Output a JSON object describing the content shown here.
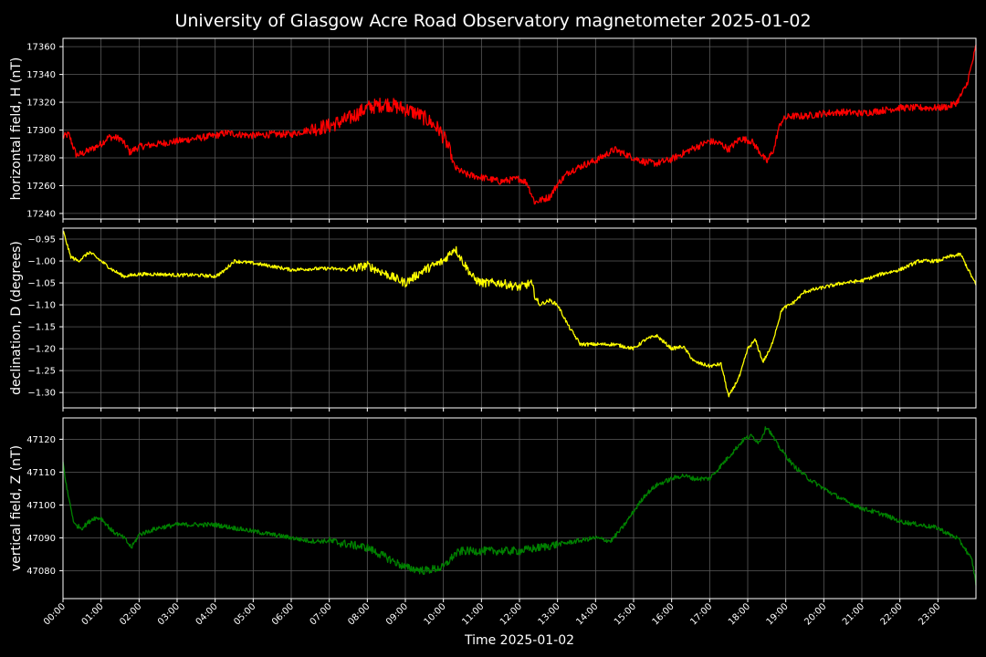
{
  "chart_data": {
    "type": "line",
    "title": "University of Glasgow Acre Road Observatory magnetometer 2025-01-02",
    "xlabel": "Time 2025-01-02",
    "x_ticks": [
      "00:00",
      "01:00",
      "02:00",
      "03:00",
      "04:00",
      "05:00",
      "06:00",
      "07:00",
      "08:00",
      "09:00",
      "10:00",
      "11:00",
      "12:00",
      "13:00",
      "14:00",
      "15:00",
      "16:00",
      "17:00",
      "18:00",
      "19:00",
      "20:00",
      "21:00",
      "22:00",
      "23:00"
    ],
    "x_range_hours": [
      0,
      24
    ],
    "grid": true,
    "panels": [
      {
        "id": "H",
        "ylabel": "horizontal field, H (nT)",
        "color": "#ff0000",
        "ylim": [
          17236,
          17366
        ],
        "yticks": [
          "17240",
          "17260",
          "17280",
          "17300",
          "17320",
          "17340",
          "17360"
        ],
        "ytick_values": [
          17240,
          17260,
          17280,
          17300,
          17320,
          17340,
          17360
        ],
        "noise": 2.5,
        "series": {
          "x_hours": [
            0,
            0.15,
            0.35,
            0.5,
            0.8,
            1.0,
            1.2,
            1.5,
            1.7,
            1.75,
            2.0,
            2.5,
            3.0,
            3.5,
            4.0,
            4.3,
            4.6,
            5.0,
            5.5,
            6.0,
            6.3,
            6.6,
            7.0,
            7.5,
            8.0,
            8.5,
            9.0,
            9.3,
            9.6,
            9.9,
            10.1,
            10.3,
            10.6,
            11.0,
            11.5,
            12.0,
            12.2,
            12.4,
            12.6,
            12.8,
            13.0,
            13.3,
            13.7,
            14.0,
            14.5,
            15.0,
            15.3,
            15.6,
            16.0,
            16.5,
            17.0,
            17.3,
            17.5,
            17.8,
            18.1,
            18.3,
            18.5,
            18.7,
            18.8,
            18.9,
            19.1,
            19.5,
            20.0,
            20.5,
            21.0,
            21.5,
            22.0,
            22.5,
            23.0,
            23.3,
            23.5,
            23.75,
            23.9,
            24.0
          ],
          "y": [
            17295,
            17297,
            17282,
            17283,
            17287,
            17290,
            17295,
            17294,
            17287,
            17284,
            17288,
            17290,
            17292,
            17294,
            17296,
            17298,
            17297,
            17296,
            17297,
            17297,
            17299,
            17301,
            17303,
            17308,
            17316,
            17319,
            17315,
            17312,
            17307,
            17300,
            17290,
            17273,
            17268,
            17266,
            17263,
            17265,
            17262,
            17248,
            17250,
            17252,
            17261,
            17270,
            17275,
            17278,
            17286,
            17280,
            17277,
            17276,
            17279,
            17286,
            17292,
            17290,
            17286,
            17294,
            17292,
            17285,
            17277,
            17287,
            17300,
            17307,
            17310,
            17310,
            17312,
            17313,
            17312,
            17314,
            17316,
            17316,
            17316,
            17317,
            17320,
            17332,
            17348,
            17360
          ]
        }
      },
      {
        "id": "D",
        "ylabel": "declination, D (degrees)",
        "color": "#ffff00",
        "ylim": [
          -1.335,
          -0.925
        ],
        "yticks": [
          "−0.95",
          "−1.00",
          "−1.05",
          "−1.10",
          "−1.15",
          "−1.20",
          "−1.25",
          "−1.30"
        ],
        "ytick_values": [
          -0.95,
          -1.0,
          -1.05,
          -1.1,
          -1.15,
          -1.2,
          -1.25,
          -1.3
        ],
        "noise": 0.004,
        "series": {
          "x_hours": [
            0,
            0.2,
            0.4,
            0.7,
            1.0,
            1.3,
            1.6,
            2.0,
            2.5,
            3.0,
            3.5,
            4.0,
            4.2,
            4.5,
            5.0,
            5.5,
            6.0,
            6.5,
            7.0,
            7.5,
            8.0,
            8.5,
            9.0,
            9.5,
            10.0,
            10.3,
            10.5,
            10.8,
            11.0,
            11.5,
            12.0,
            12.3,
            12.5,
            12.8,
            13.0,
            13.3,
            13.6,
            14.0,
            14.5,
            15.0,
            15.3,
            15.6,
            16.0,
            16.3,
            16.6,
            17.0,
            17.3,
            17.5,
            17.8,
            18.0,
            18.2,
            18.4,
            18.6,
            18.9,
            19.2,
            19.5,
            20.0,
            20.5,
            21.0,
            21.5,
            22.0,
            22.5,
            23.0,
            23.3,
            23.6,
            23.8,
            24.0
          ],
          "y": [
            -0.93,
            -0.99,
            -1.0,
            -0.98,
            -1.0,
            -1.02,
            -1.035,
            -1.03,
            -1.03,
            -1.032,
            -1.032,
            -1.035,
            -1.025,
            -1.0,
            -1.005,
            -1.012,
            -1.02,
            -1.018,
            -1.017,
            -1.02,
            -1.01,
            -1.03,
            -1.05,
            -1.02,
            -1.0,
            -0.97,
            -1.0,
            -1.04,
            -1.05,
            -1.05,
            -1.06,
            -1.05,
            -1.1,
            -1.09,
            -1.1,
            -1.15,
            -1.19,
            -1.19,
            -1.19,
            -1.2,
            -1.18,
            -1.17,
            -1.2,
            -1.195,
            -1.23,
            -1.24,
            -1.235,
            -1.31,
            -1.26,
            -1.2,
            -1.18,
            -1.23,
            -1.2,
            -1.11,
            -1.095,
            -1.07,
            -1.06,
            -1.05,
            -1.045,
            -1.03,
            -1.02,
            -1.0,
            -1.0,
            -0.99,
            -0.985,
            -1.02,
            -1.055
          ]
        }
      },
      {
        "id": "Z",
        "ylabel": "vertical field, Z (nT)",
        "color": "#008000",
        "ylim": [
          47071.5,
          47126.5
        ],
        "yticks": [
          "47080",
          "47090",
          "47100",
          "47110",
          "47120"
        ],
        "ytick_values": [
          47080,
          47090,
          47100,
          47110,
          47120
        ],
        "noise": 0.7,
        "series": {
          "x_hours": [
            0,
            0.1,
            0.3,
            0.5,
            0.8,
            1.0,
            1.3,
            1.6,
            1.8,
            2.0,
            2.5,
            3.0,
            3.5,
            4.0,
            4.5,
            5.0,
            5.5,
            6.0,
            6.5,
            7.0,
            7.5,
            8.0,
            8.5,
            9.0,
            9.5,
            10.0,
            10.3,
            10.5,
            11.0,
            11.5,
            12.0,
            12.5,
            13.0,
            13.5,
            14.0,
            14.4,
            14.7,
            15.0,
            15.3,
            15.6,
            16.0,
            16.3,
            16.6,
            17.0,
            17.3,
            17.6,
            17.9,
            18.1,
            18.3,
            18.5,
            18.8,
            19.2,
            19.6,
            20.0,
            20.3,
            20.6,
            21.0,
            21.3,
            21.6,
            22.0,
            22.5,
            23.0,
            23.3,
            23.5,
            23.7,
            23.9,
            24.0
          ],
          "y": [
            47113,
            47105,
            47094,
            47093,
            47096,
            47096,
            47092,
            47090,
            47087,
            47091,
            47093,
            47094,
            47094,
            47094,
            47093,
            47092,
            47091,
            47090,
            47089,
            47089,
            47088,
            47087,
            47084,
            47081,
            47080,
            47081,
            47085,
            47086,
            47086,
            47086,
            47086,
            47087,
            47088,
            47089,
            47090,
            47089,
            47093,
            47098,
            47103,
            47106,
            47108,
            47109,
            47108,
            47108,
            47112,
            47116,
            47120,
            47121,
            47119,
            47124,
            47118,
            47112,
            47108,
            47105,
            47103,
            47101,
            47099,
            47098,
            47097,
            47095,
            47094,
            47093,
            47091,
            47090,
            47087,
            47083,
            47076
          ]
        }
      }
    ]
  }
}
